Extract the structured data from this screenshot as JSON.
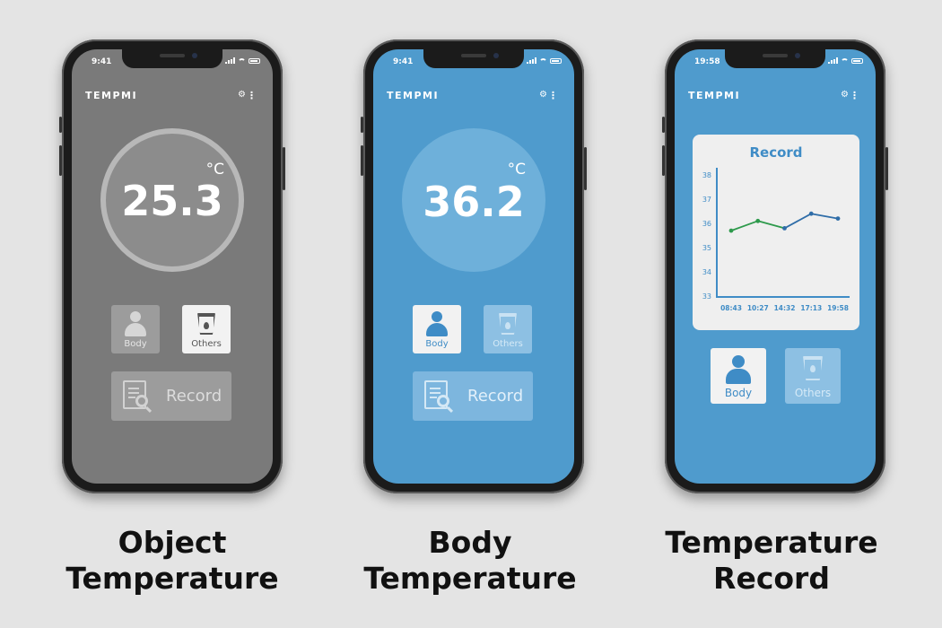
{
  "brand": "TEMPMI",
  "phones": [
    {
      "time": "9:41",
      "unit": "°C",
      "value": "25.3",
      "body_label": "Body",
      "others_label": "Others",
      "record_label": "Record",
      "caption_line1": "Object",
      "caption_line2": "Temperature"
    },
    {
      "time": "9:41",
      "unit": "°C",
      "value": "36.2",
      "body_label": "Body",
      "others_label": "Others",
      "record_label": "Record",
      "caption_line1": "Body",
      "caption_line2": "Temperature"
    },
    {
      "time": "19:58",
      "card_title": "Record",
      "body_label": "Body",
      "others_label": "Others",
      "caption_line1": "Temperature",
      "caption_line2": "Record"
    }
  ],
  "colors": {
    "object_screen": "#7a7a7a",
    "body_screen": "#4f9bcd",
    "accent": "#3f8cc6",
    "line_green": "#2e9a4c",
    "line_blue": "#2f6da8"
  },
  "icons": {
    "settings": "gear-icon",
    "menu": "more-vertical-icon",
    "body": "person-icon",
    "others": "cup-icon",
    "record": "document-search-icon"
  },
  "chart_data": {
    "type": "line",
    "title": "Record",
    "categories": [
      "08:43",
      "10:27",
      "14:32",
      "17:13",
      "19:58"
    ],
    "x_ticks": [
      "08:43",
      "10:27",
      "14:32",
      "17:13",
      "19:58"
    ],
    "y_ticks": [
      "33",
      "34",
      "35",
      "36",
      "37",
      "38"
    ],
    "ylim": [
      33,
      38
    ],
    "series": [
      {
        "values": [
          35.7,
          36.1,
          35.8,
          36.4,
          36.2
        ]
      }
    ],
    "grid": false,
    "legend": "none"
  }
}
